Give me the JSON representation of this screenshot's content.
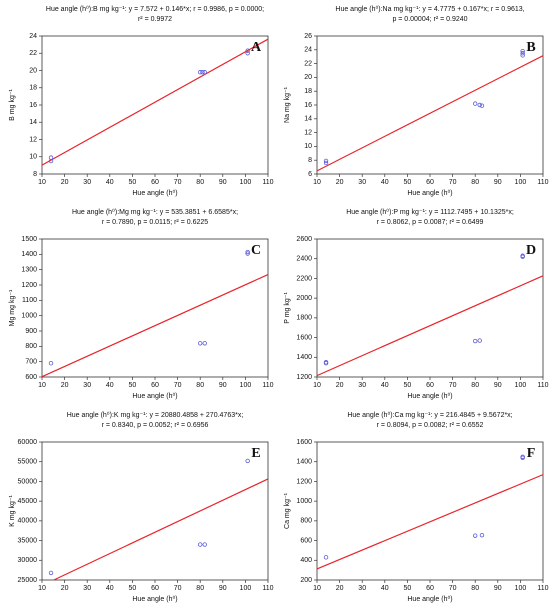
{
  "chart_data": [
    {
      "type": "scatter",
      "label": "A",
      "title_lines": [
        "Hue angle (h⁰):B mg kg⁻¹:   y = 7.572 + 0.146*x;  r = 0.9986, p = 0.0000;",
        "r² = 0.9972"
      ],
      "xlabel": "Hue angle (h⁰)",
      "ylabel": "B mg kg⁻¹",
      "x": [
        14,
        14,
        80,
        81,
        82,
        101,
        101
      ],
      "y": [
        9.9,
        9.5,
        19.8,
        19.8,
        19.8,
        22.3,
        22.0
      ],
      "fit_line": {
        "x": [
          10,
          110
        ],
        "y": [
          9.03,
          23.63
        ]
      },
      "xlim": [
        10,
        110
      ],
      "xticks": [
        10,
        20,
        30,
        40,
        50,
        60,
        70,
        80,
        90,
        100,
        110
      ],
      "ylim": [
        8,
        24
      ],
      "yticks": [
        8,
        10,
        12,
        14,
        16,
        18,
        20,
        22,
        24
      ],
      "point_color": "#5b5bd6",
      "line_color": "#e8252b"
    },
    {
      "type": "scatter",
      "label": "B",
      "title_lines": [
        "Hue angle (h⁰):Na mg kg⁻¹:   y = 4.7775 + 0.167*x;  r = 0.9613,",
        "p = 0.00004;  r² = 0.9240"
      ],
      "xlabel": "Hue angle (h⁰)",
      "ylabel": "Na mg kg⁻¹",
      "x": [
        14,
        14,
        80,
        82,
        83,
        101,
        101,
        101
      ],
      "y": [
        7.9,
        7.6,
        16.2,
        16.0,
        15.9,
        23.8,
        23.5,
        23.2
      ],
      "fit_line": {
        "x": [
          10,
          110
        ],
        "y": [
          6.45,
          23.15
        ]
      },
      "xlim": [
        10,
        110
      ],
      "xticks": [
        10,
        20,
        30,
        40,
        50,
        60,
        70,
        80,
        90,
        100,
        110
      ],
      "ylim": [
        6,
        26
      ],
      "yticks": [
        6,
        8,
        10,
        12,
        14,
        16,
        18,
        20,
        22,
        24,
        26
      ],
      "point_color": "#5b5bd6",
      "line_color": "#e8252b"
    },
    {
      "type": "scatter",
      "label": "C",
      "title_lines": [
        "Hue angle (h⁰):Mg mg kg⁻¹:   y = 535.3851 + 6.6585*x;",
        "r = 0.7890, p = 0.0115; r² = 0.6225"
      ],
      "xlabel": "Hue angle (h⁰)",
      "ylabel": "Mg mg kg⁻¹",
      "x": [
        14,
        80,
        82,
        101,
        101
      ],
      "y": [
        690,
        820,
        820,
        1415,
        1405
      ],
      "fit_line": {
        "x": [
          10,
          110
        ],
        "y": [
          602,
          1268
        ]
      },
      "xlim": [
        10,
        110
      ],
      "xticks": [
        10,
        20,
        30,
        40,
        50,
        60,
        70,
        80,
        90,
        100,
        110
      ],
      "ylim": [
        600,
        1500
      ],
      "yticks": [
        600,
        700,
        800,
        900,
        1000,
        1100,
        1200,
        1300,
        1400,
        1500
      ],
      "point_color": "#5b5bd6",
      "line_color": "#e8252b"
    },
    {
      "type": "scatter",
      "label": "D",
      "title_lines": [
        "Hue angle (h⁰):P mg kg⁻¹:  y = 1112.7495 + 10.1325*x;",
        "r = 0.8062, p = 0.0087; r² = 0.6499"
      ],
      "xlabel": "Hue angle (h⁰)",
      "ylabel": "P mg kg⁻¹",
      "x": [
        14,
        14,
        80,
        82,
        101,
        101
      ],
      "y": [
        1340,
        1350,
        1565,
        1570,
        2430,
        2420
      ],
      "fit_line": {
        "x": [
          10,
          110
        ],
        "y": [
          1214,
          2227
        ]
      },
      "xlim": [
        10,
        110
      ],
      "xticks": [
        10,
        20,
        30,
        40,
        50,
        60,
        70,
        80,
        90,
        100,
        110
      ],
      "ylim": [
        1200,
        2600
      ],
      "yticks": [
        1200,
        1400,
        1600,
        1800,
        2000,
        2200,
        2400,
        2600
      ],
      "point_color": "#5b5bd6",
      "line_color": "#e8252b"
    },
    {
      "type": "scatter",
      "label": "E",
      "title_lines": [
        "Hue angle (h⁰):K mg kg⁻¹:  y = 20880.4858 + 270.4763*x;",
        "r = 0.8340, p = 0.0052; r² = 0.6956"
      ],
      "xlabel": "Hue angle (h⁰)",
      "ylabel": "K mg kg⁻¹",
      "x": [
        14,
        80,
        82,
        101
      ],
      "y": [
        26800,
        34000,
        34000,
        55200
      ],
      "fit_line": {
        "x": [
          15.2,
          110
        ],
        "y": [
          25000,
          50632
        ]
      },
      "xlim": [
        10,
        110
      ],
      "xticks": [
        10,
        20,
        30,
        40,
        50,
        60,
        70,
        80,
        90,
        100,
        110
      ],
      "ylim": [
        25000,
        60000
      ],
      "yticks": [
        25000,
        30000,
        35000,
        40000,
        45000,
        50000,
        55000,
        60000
      ],
      "point_color": "#5b5bd6",
      "line_color": "#e8252b"
    },
    {
      "type": "scatter",
      "label": "F",
      "title_lines": [
        "Hue angle (h⁰):Ca mg kg⁻¹:  y = 216.4845 + 9.5672*x;",
        "r = 0.8094, p = 0.0082; r² = 0.6552"
      ],
      "xlabel": "Hue angle (h⁰)",
      "ylabel": "Ca mg kg⁻¹",
      "x": [
        14,
        80,
        83,
        101,
        101
      ],
      "y": [
        430,
        650,
        655,
        1450,
        1440
      ],
      "fit_line": {
        "x": [
          10,
          110
        ],
        "y": [
          312,
          1269
        ]
      },
      "xlim": [
        10,
        110
      ],
      "xticks": [
        10,
        20,
        30,
        40,
        50,
        60,
        70,
        80,
        90,
        100,
        110
      ],
      "ylim": [
        200,
        1600
      ],
      "yticks": [
        200,
        400,
        600,
        800,
        1000,
        1200,
        1400,
        1600
      ],
      "point_color": "#5b5bd6",
      "line_color": "#e8252b"
    }
  ]
}
